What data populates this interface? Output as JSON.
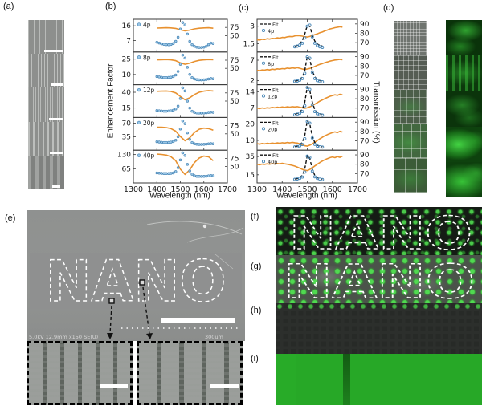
{
  "figure": {
    "panel_labels": {
      "a": "(a)",
      "b": "(b)",
      "c": "(c)",
      "d": "(d)",
      "e": "(e)",
      "f": "(f)",
      "g": "(g)",
      "h": "(h)",
      "i": "(i)"
    }
  },
  "panel_b": {
    "ylabel": "Enhancement Factor",
    "xlabel": "Wavelength (nm)"
  },
  "panel_c": {
    "ylabel_right": "Transmission (%)",
    "xlabel": "Wavelength (nm)"
  },
  "panel_e": {
    "nano_text": "NANO",
    "caption": "5.0kV 12.9mm x150 SE(U)",
    "scale_label": "300um"
  },
  "panel_f": {
    "nano_text": "NANO"
  },
  "panel_g": {
    "nano_text": "NANO"
  },
  "colors": {
    "ef_marker": "#9ec9e8",
    "ef_marker_edge": "#4a88b8",
    "transmission_line": "#e8912f",
    "fit_line": "#111111",
    "fluor_green": "#2fbf2f"
  },
  "chart_data": [
    {
      "id": "panel-b",
      "type": "scatter",
      "xlabel": "Wavelength (nm)",
      "ylabel": "Enhancement Factor",
      "x_range": [
        1300,
        1700
      ],
      "x_ticks": [
        1300,
        1400,
        1500,
        1600,
        1700
      ],
      "right_range": [
        0,
        100
      ],
      "right_ticks": [
        50,
        75
      ],
      "legend_note": "blue circles = enhancement factor, orange line = transmission",
      "subplots": [
        {
          "label": "4p",
          "left_range": [
            0,
            20
          ],
          "left_ticks": [
            7,
            16
          ],
          "ef": {
            "x_start": 1400,
            "x_step": 10,
            "y": [
              6,
              5.5,
              5,
              4.7,
              4.5,
              4.4,
              4.6,
              5.2,
              6.5,
              9,
              14,
              18,
              16.5,
              11,
              6.5,
              4.5,
              3.5,
              3,
              2.8,
              2.8,
              3,
              3.5,
              4.5,
              5.5,
              5.2
            ]
          },
          "transmission": {
            "x_start": 1400,
            "x_step": 20,
            "y": [
              73,
              73.5,
              74,
              73.5,
              72,
              68,
              64.5,
              67,
              70.5,
              72.5,
              73.5,
              74,
              72.5
            ]
          }
        },
        {
          "label": "8p",
          "left_range": [
            0,
            32
          ],
          "left_ticks": [
            10,
            25
          ],
          "ef": {
            "x_start": 1400,
            "x_step": 10,
            "y": [
              8,
              7.6,
              7.2,
              7,
              7,
              7.1,
              7.4,
              8,
              9.5,
              13,
              20,
              29,
              26,
              17,
              10,
              7,
              5.6,
              5,
              4.8,
              4.7,
              4.8,
              5.1,
              5.6,
              6,
              5.8
            ]
          },
          "transmission": {
            "x_start": 1400,
            "x_step": 20,
            "y": [
              76,
              76.5,
              77,
              76,
              73.5,
              67,
              62.5,
              66,
              71,
              74.5,
              76,
              77,
              76.5
            ]
          }
        },
        {
          "label": "12p",
          "left_range": [
            0,
            52
          ],
          "left_ticks": [
            15,
            40
          ],
          "ef": {
            "x_start": 1400,
            "x_step": 10,
            "y": [
              11,
              10.6,
              10.2,
              10,
              10,
              10.2,
              10.6,
              11.5,
              13.5,
              18,
              30,
              47,
              42,
              26,
              15,
              10,
              8,
              7.2,
              7,
              6.9,
              7,
              7.4,
              8,
              8.5,
              8.2
            ]
          },
          "transmission": {
            "x_start": 1400,
            "x_step": 20,
            "y": [
              80,
              80.5,
              81,
              79.5,
              75,
              64,
              54,
              60,
              70,
              77,
              80.5,
              82,
              81
            ]
          }
        },
        {
          "label": "20p",
          "left_range": [
            0,
            85
          ],
          "left_ticks": [
            35,
            70
          ],
          "ef": {
            "x_start": 1400,
            "x_step": 10,
            "y": [
              22,
              21.2,
              20.5,
              20,
              20,
              20.3,
              21,
              22.5,
              26,
              35,
              55,
              76,
              69,
              45,
              28,
              20,
              16.5,
              15.5,
              15,
              15,
              15.3,
              15.8,
              16.5,
              17,
              16.6
            ]
          },
          "transmission": {
            "x_start": 1400,
            "x_step": 20,
            "y": [
              70,
              70,
              69,
              66,
              58,
              42,
              29,
              38,
              54,
              64,
              67.5,
              66,
              61
            ]
          }
        },
        {
          "label": "40p",
          "left_range": [
            0,
            150
          ],
          "left_ticks": [
            65,
            130
          ],
          "ef": {
            "x_start": 1400,
            "x_step": 10,
            "y": [
              46,
              45,
              44,
              43.4,
              43,
              43.4,
              44.2,
              46,
              52,
              70,
              105,
              138,
              126,
              85,
              55,
              40,
              33,
              30.6,
              30,
              29.6,
              30,
              31,
              32.6,
              34,
              33
            ]
          },
          "transmission": {
            "x_start": 1400,
            "x_step": 20,
            "y": [
              88,
              87,
              85,
              80,
              68,
              42,
              26,
              40,
              62,
              76,
              82,
              80,
              68
            ]
          }
        }
      ]
    },
    {
      "id": "panel-c",
      "type": "scatter",
      "xlabel": "Wavelength (nm)",
      "ylabel_right": "Transmission (%)",
      "x_range": [
        1300,
        1700
      ],
      "x_ticks": [
        1300,
        1400,
        1500,
        1600,
        1700
      ],
      "right_range": [
        60,
        95
      ],
      "right_ticks": [
        70,
        80,
        90
      ],
      "legend_fit": "Fit",
      "subplots": [
        {
          "label": "4p",
          "left_range": [
            0.8,
            3.6
          ],
          "left_ticks": [
            1.5,
            3
          ],
          "data": {
            "x_start": 1450,
            "x_step": 10,
            "y": [
              1.25,
              1.3,
              1.4,
              1.55,
              2.0,
              3.0,
              3.1,
              2.1,
              1.55,
              1.35,
              1.25,
              1.2
            ]
          },
          "fit": {
            "x_start": 1450,
            "x_step": 10,
            "y": [
              1.3,
              1.37,
              1.5,
              1.77,
              2.34,
              3.07,
              3.0,
              2.26,
              1.73,
              1.48,
              1.37,
              1.31
            ]
          },
          "transmission": {
            "x_start": 1300,
            "x_step": 10,
            "y": [
              73.2,
              72.8,
              73.6,
              73.4,
              74.2,
              73.8,
              74.6,
              74.4,
              75.2,
              74.8,
              75.6,
              75.4,
              76.2,
              76.6,
              76.4,
              77.2,
              77.6,
              77.4,
              77,
              76.4,
              76,
              76.6,
              77.6,
              78.6,
              79.4,
              80.6,
              81.4,
              82.6,
              83.4,
              84.6,
              85.2,
              86,
              86.4,
              87,
              86.6
            ]
          }
        },
        {
          "label": "8p",
          "left_range": [
            1,
            9
          ],
          "left_ticks": [
            2,
            7
          ],
          "data": {
            "x_start": 1450,
            "x_step": 10,
            "y": [
              1.8,
              1.9,
              2.1,
              2.5,
              3.8,
              7.8,
              7.5,
              4.0,
              2.5,
              2.0,
              1.8,
              1.7
            ]
          },
          "fit": {
            "x_start": 1450,
            "x_step": 10,
            "y": [
              1.9,
              2.0,
              2.3,
              2.9,
              4.5,
              7.9,
              7.2,
              4.4,
              2.9,
              2.3,
              2.0,
              1.9
            ]
          },
          "transmission": {
            "x_start": 1300,
            "x_step": 10,
            "y": [
              75.4,
              75,
              75.8,
              75.6,
              76.2,
              75.8,
              76.6,
              76.2,
              77,
              76.6,
              77.2,
              77,
              77.8,
              77.4,
              78,
              77.6,
              78.2,
              77.6,
              76.8,
              76.2,
              76.8,
              77.4,
              78.4,
              79.6,
              80.8,
              81.8,
              82.6,
              83.6,
              84.4,
              85.2,
              85.8,
              86.4,
              86.8,
              87.2,
              86.8
            ]
          }
        },
        {
          "label": "12p",
          "left_range": [
            3,
            17
          ],
          "left_ticks": [
            7,
            14
          ],
          "data": {
            "x_start": 1450,
            "x_step": 10,
            "y": [
              4.2,
              4.4,
              4.8,
              5.5,
              8,
              15.8,
              15,
              8.5,
              5.5,
              4.6,
              4.2,
              4.0
            ]
          },
          "fit": {
            "x_start": 1450,
            "x_step": 10,
            "y": [
              4.4,
              4.7,
              5.3,
              6.5,
              9.5,
              16,
              14.5,
              9.5,
              6.3,
              5.1,
              4.6,
              4.3
            ]
          },
          "transmission": {
            "x_start": 1300,
            "x_step": 10,
            "y": [
              70,
              69.4,
              70.2,
              69.8,
              70.4,
              70,
              70.8,
              70.4,
              71,
              70.6,
              71.2,
              70.8,
              71.4,
              71,
              71.6,
              71.2,
              71.6,
              71,
              70.4,
              69.8,
              70.4,
              71.4,
              72.6,
              74.2,
              75.8,
              77.4,
              78.8,
              80.2,
              81.4,
              82.6,
              83.4,
              84.2,
              83.6,
              84.8,
              84.2
            ]
          }
        },
        {
          "label": "20p",
          "left_range": [
            4,
            24
          ],
          "left_ticks": [
            10,
            20
          ],
          "data": {
            "x_start": 1450,
            "x_step": 10,
            "y": [
              6,
              6.2,
              6.6,
              7.5,
              11,
              21.5,
              20.5,
              11.5,
              7.6,
              6.5,
              6.1,
              5.9
            ]
          },
          "fit": {
            "x_start": 1450,
            "x_step": 10,
            "y": [
              6.2,
              6.5,
              7.2,
              8.8,
              13,
              22,
              20,
              12.5,
              8.6,
              7.1,
              6.4,
              6.1
            ]
          },
          "transmission": {
            "x_start": 1300,
            "x_step": 10,
            "y": [
              67,
              66.4,
              67.2,
              66.8,
              67.4,
              67,
              67.6,
              67.2,
              67.8,
              67.4,
              68,
              67.6,
              68.2,
              67.8,
              68.4,
              68,
              67.6,
              66.8,
              65.8,
              64.8,
              64.4,
              65.4,
              66.8,
              68.6,
              70.4,
              72.2,
              73.8,
              75.4,
              76.6,
              77.8,
              78.8,
              79.6,
              78.8,
              80.2,
              79.4
            ]
          }
        },
        {
          "label": "40p",
          "left_range": [
            6,
            42
          ],
          "left_ticks": [
            15,
            35
          ],
          "data": {
            "x_start": 1450,
            "x_step": 10,
            "y": [
              10,
              10.3,
              11,
              12.5,
              18,
              35.5,
              34,
              19,
              12.8,
              11,
              10.2,
              9.8
            ]
          },
          "fit": {
            "x_start": 1450,
            "x_step": 10,
            "y": [
              10.3,
              10.8,
              12,
              14.5,
              21.5,
              36,
              33,
              21,
              14.2,
              11.8,
              10.7,
              10.2
            ]
          },
          "transmission": {
            "x_start": 1300,
            "x_step": 10,
            "y": [
              80,
              79.4,
              80.2,
              79.8,
              80.4,
              80,
              80.6,
              80.2,
              80.8,
              80.4,
              81,
              80.4,
              80,
              79.4,
              78.8,
              78,
              77,
              75.8,
              74.6,
              73.6,
              73.2,
              74.4,
              76.2,
              78.2,
              80,
              81.8,
              83.4,
              84.8,
              86,
              87,
              87.8,
              87,
              88.2,
              87.4,
              88.6
            ]
          }
        }
      ]
    }
  ]
}
